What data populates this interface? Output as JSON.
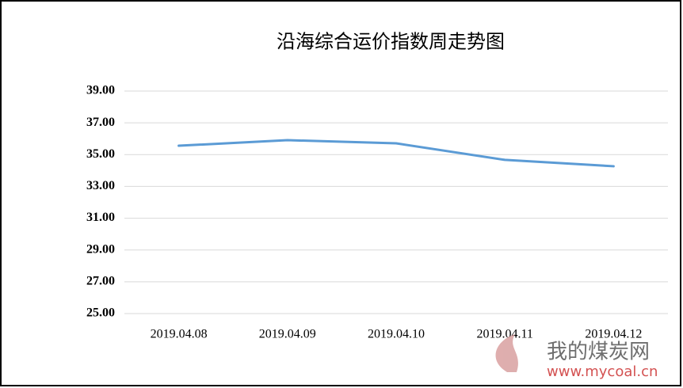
{
  "chart_data": {
    "type": "line",
    "title": "沿海综合运价指数周走势图",
    "categories": [
      "2019.04.08",
      "2019.04.09",
      "2019.04.10",
      "2019.04.11",
      "2019.04.12"
    ],
    "series": [
      {
        "name": "沿海综合运价指数",
        "color": "#5b9bd5",
        "values": [
          35.56,
          35.91,
          35.71,
          34.67,
          34.27
        ]
      }
    ],
    "ylim": [
      25,
      39
    ],
    "yticks": [
      {
        "value": 25,
        "label": "25.00"
      },
      {
        "value": 27,
        "label": "27.00"
      },
      {
        "value": 29,
        "label": "29.00"
      },
      {
        "value": 31,
        "label": "31.00"
      },
      {
        "value": 33,
        "label": "33.00"
      },
      {
        "value": 35,
        "label": "35.00"
      },
      {
        "value": 37,
        "label": "37.00"
      },
      {
        "value": 39,
        "label": "39.00"
      }
    ],
    "grid": true,
    "watermark": {
      "name": "我的煤炭网",
      "url": "www.mycoal.cn"
    }
  }
}
